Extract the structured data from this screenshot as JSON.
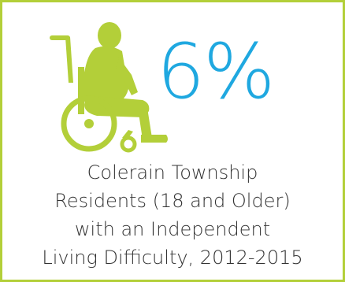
{
  "stat": {
    "value": "6%"
  },
  "caption": {
    "lines": [
      "Colerain Township",
      "Residents (18 and Older)",
      "with an Independent",
      "Living Difficulty, 2012-2015"
    ]
  },
  "icons": {
    "figure": "wheelchair-user-icon"
  },
  "colors": {
    "accent_green": "#b3cf39",
    "stat_blue": "#1fa8e0",
    "text": "#333333"
  }
}
